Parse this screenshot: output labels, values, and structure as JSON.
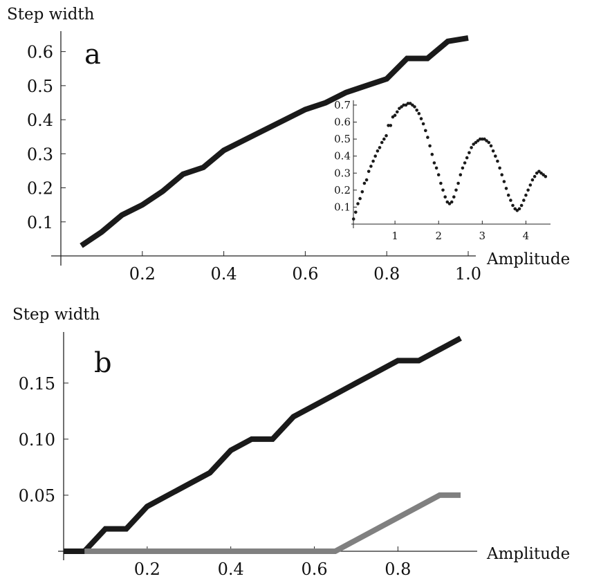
{
  "chart_data": [
    {
      "panel": "a",
      "type": "line",
      "xlabel": "Amplitude",
      "ylabel": "Step width",
      "xlim": [
        0,
        1.0
      ],
      "ylim": [
        0,
        0.65
      ],
      "x_ticks": [
        0.2,
        0.4,
        0.6,
        0.8,
        1.0
      ],
      "x_tick_labels": [
        "0.2",
        "0.4",
        "0.6",
        "0.8",
        "1.0"
      ],
      "y_ticks": [
        0.1,
        0.2,
        0.3,
        0.4,
        0.5,
        0.6
      ],
      "y_tick_labels": [
        "0.1",
        "0.2",
        "0.3",
        "0.4",
        "0.5",
        "0.6"
      ],
      "series": [
        {
          "color": "#1a1a1a",
          "x": [
            0.05,
            0.1,
            0.15,
            0.2,
            0.25,
            0.3,
            0.35,
            0.4,
            0.45,
            0.5,
            0.55,
            0.6,
            0.65,
            0.7,
            0.75,
            0.8,
            0.85,
            0.9,
            0.95,
            1.0
          ],
          "y": [
            0.03,
            0.07,
            0.12,
            0.15,
            0.19,
            0.24,
            0.26,
            0.31,
            0.34,
            0.37,
            0.4,
            0.43,
            0.45,
            0.48,
            0.5,
            0.52,
            0.58,
            0.58,
            0.63,
            0.64
          ]
        }
      ],
      "inset": {
        "type": "scatter",
        "xlim": [
          0,
          4.5
        ],
        "ylim": [
          0,
          0.72
        ],
        "x_ticks": [
          1,
          2,
          3,
          4
        ],
        "x_tick_labels": [
          "1",
          "2",
          "3",
          "4"
        ],
        "y_ticks": [
          0.1,
          0.2,
          0.3,
          0.4,
          0.5,
          0.6,
          0.7
        ],
        "y_tick_labels": [
          "0.1",
          "0.2",
          "0.3",
          "0.4",
          "0.5",
          "0.6",
          "0.7"
        ],
        "series": [
          {
            "color": "#1a1a1a",
            "x": [
              0.05,
              0.1,
              0.15,
              0.2,
              0.25,
              0.3,
              0.35,
              0.4,
              0.45,
              0.5,
              0.55,
              0.6,
              0.65,
              0.7,
              0.75,
              0.8,
              0.85,
              0.9,
              0.95,
              1.0,
              1.05,
              1.1,
              1.15,
              1.2,
              1.25,
              1.3,
              1.35,
              1.4,
              1.45,
              1.5,
              1.55,
              1.6,
              1.65,
              1.7,
              1.75,
              1.8,
              1.85,
              1.9,
              1.95,
              2.0,
              2.05,
              2.1,
              2.15,
              2.2,
              2.25,
              2.3,
              2.35,
              2.4,
              2.45,
              2.5,
              2.55,
              2.6,
              2.65,
              2.7,
              2.75,
              2.8,
              2.85,
              2.9,
              2.95,
              3.0,
              3.05,
              3.1,
              3.15,
              3.2,
              3.25,
              3.3,
              3.35,
              3.4,
              3.45,
              3.5,
              3.55,
              3.6,
              3.65,
              3.7,
              3.75,
              3.8,
              3.85,
              3.9,
              3.95,
              4.0,
              4.05,
              4.1,
              4.15,
              4.2,
              4.25,
              4.3,
              4.35,
              4.4,
              4.45
            ],
            "y": [
              0.03,
              0.07,
              0.12,
              0.15,
              0.19,
              0.24,
              0.26,
              0.31,
              0.34,
              0.37,
              0.4,
              0.43,
              0.45,
              0.48,
              0.5,
              0.52,
              0.58,
              0.58,
              0.63,
              0.64,
              0.66,
              0.68,
              0.69,
              0.7,
              0.7,
              0.71,
              0.71,
              0.7,
              0.69,
              0.67,
              0.65,
              0.62,
              0.59,
              0.55,
              0.51,
              0.46,
              0.41,
              0.36,
              0.33,
              0.29,
              0.24,
              0.2,
              0.16,
              0.13,
              0.12,
              0.13,
              0.16,
              0.2,
              0.24,
              0.29,
              0.33,
              0.36,
              0.39,
              0.42,
              0.45,
              0.47,
              0.48,
              0.49,
              0.5,
              0.5,
              0.5,
              0.49,
              0.48,
              0.46,
              0.43,
              0.4,
              0.37,
              0.33,
              0.29,
              0.25,
              0.21,
              0.17,
              0.14,
              0.11,
              0.09,
              0.08,
              0.09,
              0.11,
              0.14,
              0.17,
              0.2,
              0.23,
              0.26,
              0.28,
              0.3,
              0.31,
              0.3,
              0.29,
              0.28
            ]
          }
        ]
      }
    },
    {
      "panel": "b",
      "type": "line",
      "xlabel": "Amplitude",
      "ylabel": "Step width",
      "xlim": [
        0,
        0.95
      ],
      "ylim": [
        0,
        0.19
      ],
      "x_ticks": [
        0.2,
        0.4,
        0.6,
        0.8
      ],
      "x_tick_labels": [
        "0.2",
        "0.4",
        "0.6",
        "0.8"
      ],
      "y_ticks": [
        0.05,
        0.1,
        0.15
      ],
      "y_tick_labels": [
        "0.05",
        "0.10",
        "0.15"
      ],
      "series": [
        {
          "color": "#1a1a1a",
          "x": [
            0.0,
            0.05,
            0.1,
            0.15,
            0.2,
            0.25,
            0.3,
            0.35,
            0.4,
            0.45,
            0.5,
            0.55,
            0.6,
            0.65,
            0.7,
            0.75,
            0.8,
            0.85,
            0.9,
            0.95
          ],
          "y": [
            0.0,
            0.0,
            0.02,
            0.02,
            0.04,
            0.05,
            0.06,
            0.07,
            0.09,
            0.1,
            0.1,
            0.12,
            0.13,
            0.14,
            0.15,
            0.16,
            0.17,
            0.17,
            0.18,
            0.19
          ]
        },
        {
          "color": "#808080",
          "x": [
            0.05,
            0.65,
            0.9,
            0.95
          ],
          "y": [
            0.0,
            0.0,
            0.05,
            0.05
          ]
        }
      ]
    }
  ]
}
